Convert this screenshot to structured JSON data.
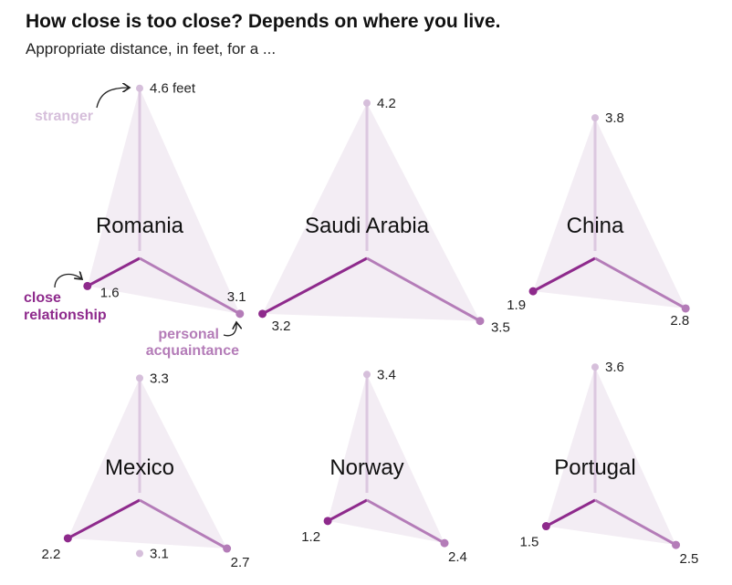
{
  "header": {
    "title": "How close is too close? Depends on where you live.",
    "subtitle": "Appropriate distance, in feet, for a ..."
  },
  "chart_data": {
    "type": "radar",
    "title": "How close is too close? Depends on where you live.",
    "subtitle": "Appropriate distance, in feet, for a ...",
    "unit_label": "feet",
    "axes": [
      "stranger",
      "close relationship",
      "personal acquaintance"
    ],
    "annotations": {
      "stranger": "stranger",
      "close": "close relationship",
      "acq": "personal acquaintance"
    },
    "colors": {
      "stranger": "#d6bfdb",
      "close": "#8e2a8c",
      "acq": "#b47cb8",
      "fill": "#f3edf4",
      "stranger_line": "#dcc8e0"
    },
    "countries": [
      {
        "name": "Romania",
        "stranger": 4.6,
        "close": 1.6,
        "acq": 3.1
      },
      {
        "name": "Saudi Arabia",
        "stranger": 4.2,
        "close": 3.2,
        "acq": 3.5
      },
      {
        "name": "China",
        "stranger": 3.8,
        "close": 1.9,
        "acq": 2.8
      },
      {
        "name": "Mexico",
        "stranger": 3.3,
        "close": 2.2,
        "acq": 2.7
      },
      {
        "name": "Norway",
        "stranger": 3.4,
        "close": 1.2,
        "acq": 2.4
      },
      {
        "name": "Portugal",
        "stranger": 3.6,
        "close": 1.5,
        "acq": 2.5
      },
      {
        "name": "",
        "stranger": 3.1,
        "partial": true
      }
    ]
  }
}
